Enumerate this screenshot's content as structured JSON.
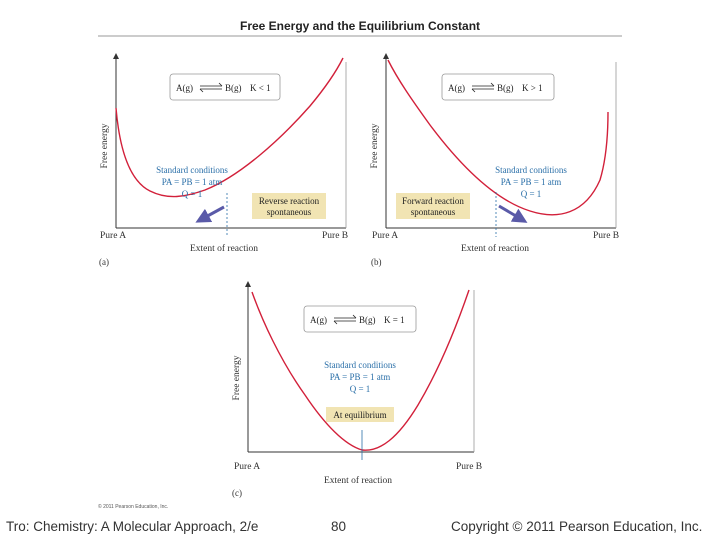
{
  "figure": {
    "title": "Free Energy and the Equilibrium Constant",
    "copyright_small": "© 2011 Pearson Education, Inc.",
    "panels": [
      {
        "letter": "(a)",
        "equation": {
          "reactant": "A(g)",
          "product": "B(g)",
          "k_relation": "K < 1"
        },
        "y_axis_label": "Free energy",
        "x_axis_label": "Extent of reaction",
        "x_start": "Pure A",
        "x_end": "Pure B",
        "standard_conditions": {
          "line1": "Standard conditions",
          "line2": "PA = PB = 1 atm",
          "line3": "Q = 1"
        },
        "note": {
          "line1": "Reverse reaction",
          "line2": "spontaneous"
        }
      },
      {
        "letter": "(b)",
        "equation": {
          "reactant": "A(g)",
          "product": "B(g)",
          "k_relation": "K > 1"
        },
        "y_axis_label": "Free energy",
        "x_axis_label": "Extent of reaction",
        "x_start": "Pure A",
        "x_end": "Pure B",
        "standard_conditions": {
          "line1": "Standard conditions",
          "line2": "PA = PB = 1 atm",
          "line3": "Q = 1"
        },
        "note": {
          "line1": "Forward reaction",
          "line2": "spontaneous"
        }
      },
      {
        "letter": "(c)",
        "equation": {
          "reactant": "A(g)",
          "product": "B(g)",
          "k_relation": "K = 1"
        },
        "y_axis_label": "Free energy",
        "x_axis_label": "Extent of reaction",
        "x_start": "Pure A",
        "x_end": "Pure B",
        "standard_conditions": {
          "line1": "Standard conditions",
          "line2": "PA = PB = 1 atm",
          "line3": "Q = 1"
        },
        "note": {
          "line1": "At equilibrium"
        }
      }
    ]
  },
  "footer": {
    "left": "Tro: Chemistry: A Molecular Approach, 2/e",
    "page_number": "80",
    "right": "Copyright © 2011 Pearson Education, Inc."
  },
  "colors": {
    "curve": "#d2203a",
    "conditions": "#2a6fa8",
    "arrow": "#5a5aa8",
    "note_box": "#f1e4b3",
    "rule": "#999999"
  }
}
